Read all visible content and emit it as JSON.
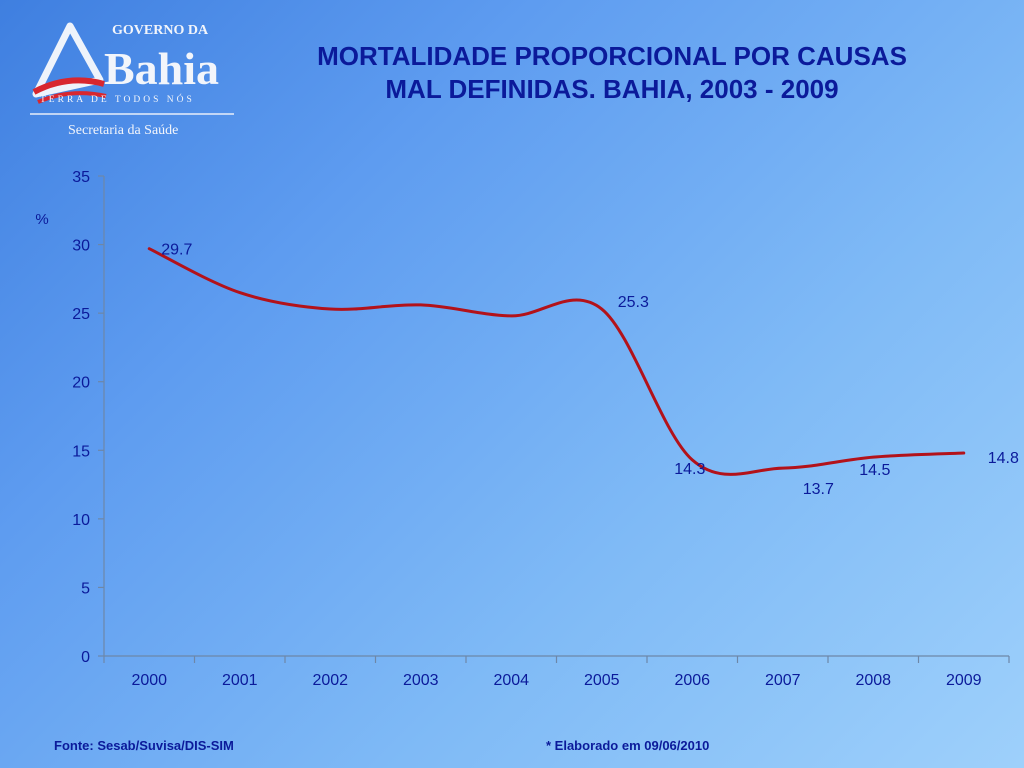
{
  "logo": {
    "top_text": "GOVERNO DA",
    "name": "Bahia",
    "tagline": "TERRA DE TODOS NÓS",
    "department": "Secretaria da Saúde"
  },
  "title_line1": "MORTALIDADE PROPORCIONAL POR CAUSAS",
  "title_line2": "MAL DEFINIDAS.  BAHIA, 2003 - 2009",
  "footer": {
    "source": "Fonte: Sesab/Suvisa/DIS-SIM",
    "note": "* Elaborado em 09/06/2010"
  },
  "chart_data": {
    "type": "line",
    "categories": [
      "2000",
      "2001",
      "2002",
      "2003",
      "2004",
      "2005",
      "2006",
      "2007",
      "2008",
      "2009"
    ],
    "series": [
      {
        "values": [
          29.7,
          26.5,
          25.3,
          25.6,
          24.8,
          25.3,
          14.3,
          13.7,
          14.5,
          14.8
        ],
        "labels": [
          "29.7",
          "",
          "",
          "",
          "",
          "25.3",
          "14.3",
          "13.7",
          "14.5",
          "14.8"
        ]
      }
    ],
    "ylabel": "%",
    "ylim": [
      0,
      35
    ],
    "yticks": [
      0,
      5,
      10,
      15,
      20,
      25,
      30,
      35
    ],
    "grid": false,
    "line_color": "#b3121a",
    "text_color": "#0b1a9a"
  }
}
